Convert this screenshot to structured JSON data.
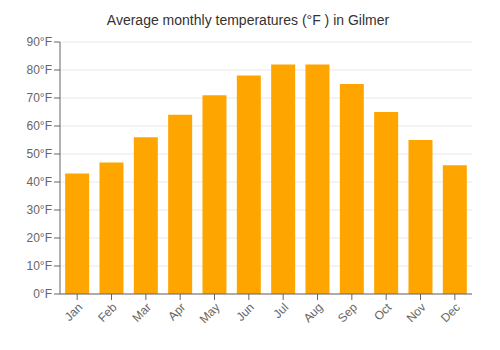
{
  "chart_data": {
    "type": "bar",
    "title": "Average monthly temperatures (°F ) in Gilmer",
    "categories": [
      "Jan",
      "Feb",
      "Mar",
      "Apr",
      "May",
      "Jun",
      "Jul",
      "Aug",
      "Sep",
      "Oct",
      "Nov",
      "Dec"
    ],
    "values": [
      43,
      47,
      56,
      64,
      71,
      78,
      82,
      82,
      75,
      65,
      55,
      46
    ],
    "color": "#FFA500",
    "ylim": [
      0,
      90
    ],
    "yticks": [
      {
        "value": 0,
        "label": "0°F"
      },
      {
        "value": 10,
        "label": "10°F"
      },
      {
        "value": 20,
        "label": "20°F"
      },
      {
        "value": 30,
        "label": "30°F"
      },
      {
        "value": 40,
        "label": "40°F"
      },
      {
        "value": 50,
        "label": "50°F"
      },
      {
        "value": 60,
        "label": "60°F"
      },
      {
        "value": 70,
        "label": "70°F"
      },
      {
        "value": 80,
        "label": "80°F"
      },
      {
        "value": 90,
        "label": "90°F"
      }
    ],
    "grid": true
  }
}
